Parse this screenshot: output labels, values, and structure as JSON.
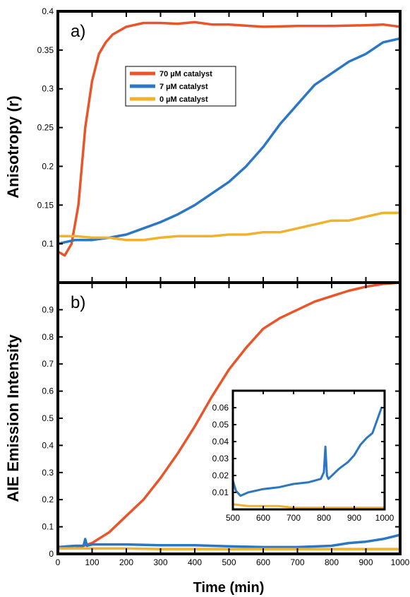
{
  "figure": {
    "xlabel": "Time (min)",
    "colors": {
      "red": "#e8552a",
      "blue": "#2b77c4",
      "yellow": "#f2b12c"
    }
  },
  "chart_data": [
    {
      "panel": "a)",
      "type": "line",
      "ylabel": "Anisotropy (r)",
      "xlim": [
        0,
        1000
      ],
      "ylim": [
        0.05,
        0.4
      ],
      "yticks": [
        "0.1",
        "0.15",
        "0.2",
        "0.25",
        "0.3",
        "0.35",
        "0.4"
      ],
      "ytick_values": [
        0.1,
        0.15,
        0.2,
        0.25,
        0.3,
        0.35,
        0.4
      ],
      "legend_position": "upper-left",
      "series": [
        {
          "name": "70 µM catalyst",
          "color": "#e8552a",
          "x": [
            0,
            20,
            40,
            60,
            80,
            100,
            120,
            140,
            160,
            200,
            250,
            300,
            350,
            400,
            450,
            500,
            600,
            700,
            800,
            900,
            950,
            1000
          ],
          "y": [
            0.09,
            0.085,
            0.1,
            0.15,
            0.25,
            0.31,
            0.345,
            0.36,
            0.37,
            0.38,
            0.385,
            0.385,
            0.384,
            0.386,
            0.383,
            0.383,
            0.38,
            0.381,
            0.381,
            0.382,
            0.383,
            0.38
          ]
        },
        {
          "name": "7 µM catalyst",
          "color": "#2b77c4",
          "x": [
            0,
            50,
            100,
            150,
            200,
            250,
            300,
            350,
            400,
            450,
            500,
            550,
            600,
            650,
            700,
            750,
            800,
            850,
            900,
            950,
            1000
          ],
          "y": [
            0.1,
            0.105,
            0.105,
            0.108,
            0.112,
            0.12,
            0.128,
            0.138,
            0.15,
            0.165,
            0.18,
            0.2,
            0.225,
            0.255,
            0.28,
            0.305,
            0.32,
            0.335,
            0.345,
            0.36,
            0.365
          ]
        },
        {
          "name": "0 µM catalyst",
          "color": "#f2b12c",
          "x": [
            0,
            50,
            100,
            150,
            200,
            250,
            300,
            350,
            400,
            450,
            500,
            550,
            600,
            650,
            700,
            750,
            800,
            850,
            900,
            950,
            1000
          ],
          "y": [
            0.11,
            0.11,
            0.108,
            0.108,
            0.105,
            0.105,
            0.108,
            0.11,
            0.11,
            0.11,
            0.112,
            0.112,
            0.115,
            0.115,
            0.12,
            0.125,
            0.13,
            0.13,
            0.135,
            0.14,
            0.14
          ]
        }
      ]
    },
    {
      "panel": "b)",
      "type": "line",
      "ylabel": "AIE Emission Intensity",
      "xlim": [
        0,
        1000
      ],
      "ylim": [
        0,
        1
      ],
      "xticks": [
        "0",
        "100",
        "200",
        "300",
        "400",
        "500",
        "600",
        "700",
        "800",
        "900",
        "1000"
      ],
      "xtick_values": [
        0,
        100,
        200,
        300,
        400,
        500,
        600,
        700,
        800,
        900,
        1000
      ],
      "yticks": [
        "0",
        "0.1",
        "0.2",
        "0.3",
        "0.4",
        "0.5",
        "0.6",
        "0.7",
        "0.8",
        "0.9"
      ],
      "ytick_values": [
        0,
        0.1,
        0.2,
        0.3,
        0.4,
        0.5,
        0.6,
        0.7,
        0.8,
        0.9
      ],
      "series": [
        {
          "name": "70 µM catalyst",
          "color": "#e8552a",
          "x": [
            0,
            50,
            100,
            150,
            200,
            250,
            300,
            350,
            400,
            450,
            500,
            550,
            600,
            650,
            700,
            750,
            800,
            850,
            900,
            950,
            1000
          ],
          "y": [
            0.02,
            0.02,
            0.04,
            0.08,
            0.14,
            0.2,
            0.28,
            0.37,
            0.47,
            0.58,
            0.68,
            0.76,
            0.83,
            0.87,
            0.9,
            0.93,
            0.95,
            0.97,
            0.985,
            0.995,
            1.0
          ]
        },
        {
          "name": "7 µM catalyst",
          "color": "#2b77c4",
          "x": [
            0,
            50,
            75,
            80,
            85,
            100,
            200,
            300,
            400,
            500,
            600,
            700,
            800,
            850,
            900,
            950,
            1000
          ],
          "y": [
            0.025,
            0.03,
            0.03,
            0.055,
            0.03,
            0.035,
            0.035,
            0.032,
            0.032,
            0.028,
            0.025,
            0.025,
            0.03,
            0.04,
            0.045,
            0.055,
            0.07
          ]
        },
        {
          "name": "0 µM catalyst",
          "color": "#f2b12c",
          "x": [
            0,
            100,
            200,
            300,
            400,
            500,
            600,
            700,
            800,
            900,
            1000
          ],
          "y": [
            0.02,
            0.02,
            0.02,
            0.018,
            0.018,
            0.018,
            0.018,
            0.018,
            0.018,
            0.018,
            0.018
          ]
        }
      ],
      "inset": {
        "type": "line",
        "xlim": [
          500,
          1000
        ],
        "ylim": [
          0,
          0.07
        ],
        "xticks": [
          "500",
          "600",
          "700",
          "800",
          "900",
          "1000"
        ],
        "xtick_values": [
          500,
          600,
          700,
          800,
          900,
          1000
        ],
        "yticks": [
          "0.01",
          "0.02",
          "0.03",
          "0.04",
          "0.05",
          "0.06"
        ],
        "ytick_values": [
          0.01,
          0.02,
          0.03,
          0.04,
          0.05,
          0.06
        ],
        "series": [
          {
            "name": "7 µM catalyst",
            "color": "#2b77c4",
            "x": [
              500,
              510,
              525,
              550,
              600,
              650,
              700,
              750,
              790,
              800,
              805,
              810,
              815,
              850,
              880,
              900,
              920,
              940,
              960,
              980,
              990
            ],
            "y": [
              0.017,
              0.011,
              0.008,
              0.01,
              0.012,
              0.013,
              0.015,
              0.016,
              0.018,
              0.022,
              0.037,
              0.02,
              0.018,
              0.024,
              0.028,
              0.032,
              0.038,
              0.042,
              0.045,
              0.055,
              0.06
            ]
          },
          {
            "name": "0 µM catalyst",
            "color": "#f2b12c",
            "x": [
              500,
              550,
              600,
              650,
              700,
              750,
              800,
              850,
              900,
              950,
              1000
            ],
            "y": [
              0.003,
              0.002,
              0.002,
              0.002,
              0.001,
              0.001,
              0.001,
              0.001,
              0.001,
              0.001,
              0.001
            ]
          }
        ]
      }
    }
  ]
}
